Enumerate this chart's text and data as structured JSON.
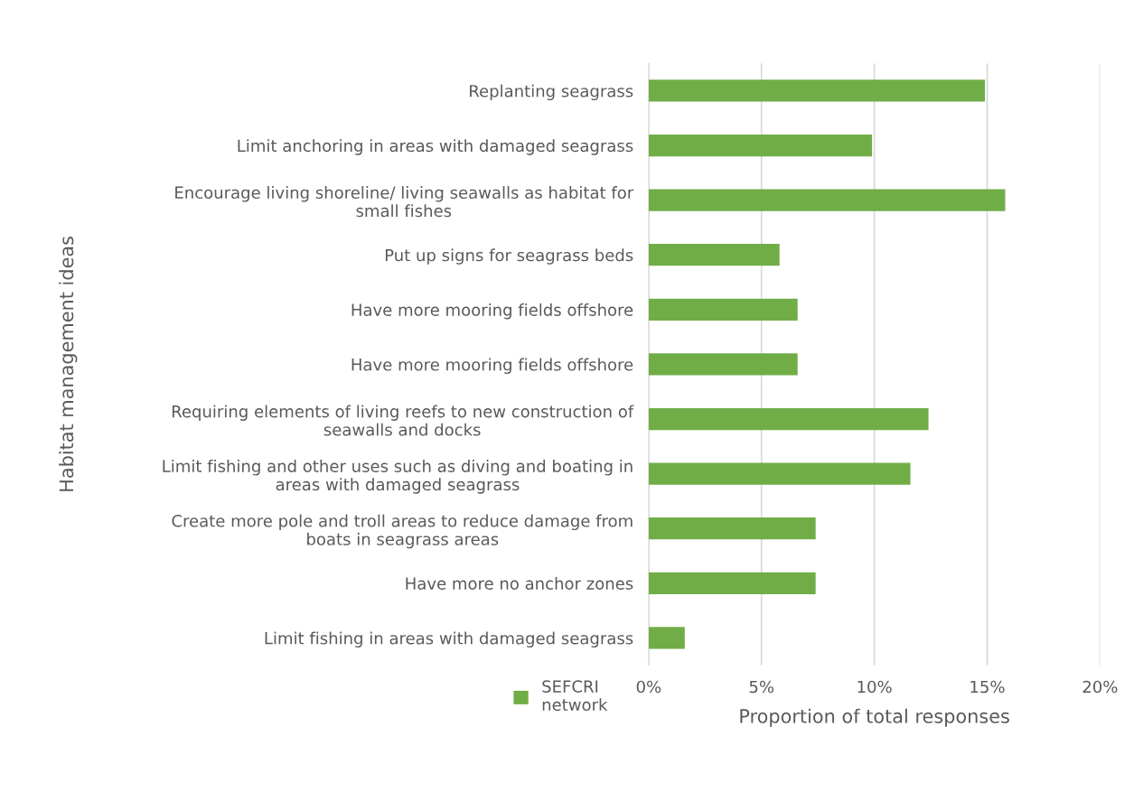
{
  "chart_data": {
    "type": "bar",
    "orientation": "horizontal",
    "ylabel": "Habitat management ideas",
    "xlabel": "Proportion of total responses",
    "categories": [
      "Replanting seagrass",
      "Limit anchoring in areas with damaged seagrass",
      "Encourage living shoreline/ living seawalls as habitat for\nsmall fishes",
      "Put up signs for seagrass beds",
      "Have more mooring fields offshore",
      "Have more mooring fields offshore",
      "Requiring elements of living reefs to new construction of\nseawalls and docks",
      "Limit fishing and other uses such as diving and boating in\nareas with damaged seagrass",
      "Create more pole and troll areas to reduce damage from\nboats in seagrass areas",
      "Have more no anchor zones",
      "Limit fishing in areas with damaged seagrass"
    ],
    "series": [
      {
        "name": "SEFCRI\nnetwork",
        "color": "#70ad47",
        "values": [
          14.9,
          9.9,
          15.8,
          5.8,
          6.6,
          6.6,
          12.4,
          11.6,
          7.4,
          7.4,
          1.6
        ]
      }
    ],
    "xlim": [
      0,
      20
    ],
    "xticks": [
      {
        "value": 0,
        "label": "0%"
      },
      {
        "value": 5,
        "label": "5%"
      },
      {
        "value": 10,
        "label": "10%"
      },
      {
        "value": 15,
        "label": "15%"
      },
      {
        "value": 20,
        "label": "20%"
      }
    ],
    "grid": "x",
    "legend": "bottom left"
  }
}
